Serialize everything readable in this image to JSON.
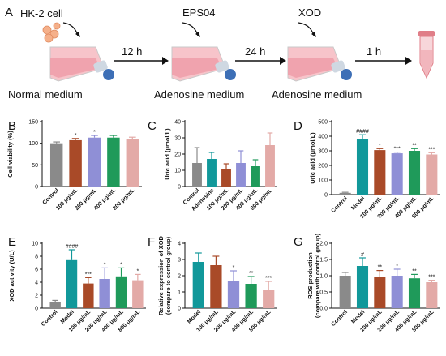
{
  "panel_a": {
    "letter": "A",
    "steps": [
      {
        "top": "HK-2 cell",
        "bottom": "Normal medium"
      },
      {
        "top": "EPS04",
        "bottom": "Adenosine medium"
      },
      {
        "top": "XOD",
        "bottom": "Adenosine medium"
      }
    ],
    "arrows": [
      "12 h",
      "24 h",
      "1 h"
    ]
  },
  "colors": {
    "grey": "#8a8a8a",
    "brown": "#a94a28",
    "lavender": "#8f8fd6",
    "green": "#1f9a5a",
    "pink": "#e3aaa7",
    "teal": "#11989a",
    "flask_pink": "#f2b6bd",
    "flask_cap": "#3d6fb6"
  },
  "chart_data": [
    {
      "panel": "B",
      "type": "bar",
      "ylabel": "Cell viability (%)",
      "yticks": [
        0,
        50,
        100,
        150
      ],
      "ylim": [
        0,
        150
      ],
      "categories": [
        "Control",
        "100 μg/mL",
        "200 μg/mL",
        "400 μg/mL",
        "800 μg/mL"
      ],
      "values": [
        100,
        107,
        113,
        113,
        110
      ],
      "errors": [
        3,
        4,
        5,
        5,
        4
      ],
      "colors": [
        "grey",
        "brown",
        "lavender",
        "green",
        "pink"
      ],
      "sig": [
        "",
        "*",
        "*",
        "",
        ""
      ]
    },
    {
      "panel": "C",
      "type": "bar",
      "ylabel": "Uric acid  (μmol/L)",
      "yticks": [
        0,
        10,
        20,
        30,
        40
      ],
      "ylim": [
        0,
        40
      ],
      "categories": [
        "Control",
        "Adenosine",
        "100 μg/mL",
        "200 μg/mL",
        "400 μg/mL",
        "800 μg/mL"
      ],
      "values": [
        14.5,
        17,
        11,
        14.5,
        12.5,
        25.5
      ],
      "errors": [
        9.5,
        4,
        3,
        7.5,
        4,
        7.5
      ],
      "colors": [
        "grey",
        "teal",
        "brown",
        "lavender",
        "green",
        "pink"
      ],
      "sig": [
        "",
        "",
        "",
        "",
        "",
        ""
      ]
    },
    {
      "panel": "D",
      "type": "bar",
      "ylabel": "Uric acid  (μmol/L)",
      "yticks": [
        0,
        100,
        200,
        300,
        400,
        500
      ],
      "ylim": [
        0,
        500
      ],
      "categories": [
        "Control",
        "Model",
        "100 μg/mL",
        "200 μg/mL",
        "400 μg/mL",
        "800 μg/mL"
      ],
      "values": [
        12,
        378,
        305,
        283,
        300,
        275
      ],
      "errors": [
        4,
        32,
        10,
        8,
        15,
        12
      ],
      "colors": [
        "grey",
        "teal",
        "brown",
        "lavender",
        "green",
        "pink"
      ],
      "sig": [
        "",
        "####",
        "*",
        "***",
        "**",
        "***"
      ]
    },
    {
      "panel": "E",
      "type": "bar",
      "ylabel": "XOD activity (U/L)",
      "yticks": [
        0,
        2,
        4,
        6,
        8,
        10
      ],
      "ylim": [
        0,
        10
      ],
      "categories": [
        "Control",
        "Model",
        "100 μg/mL",
        "200 μg/mL",
        "400 μg/mL",
        "800 μg/mL"
      ],
      "values": [
        0.9,
        7.4,
        3.8,
        4.5,
        4.9,
        4.3
      ],
      "errors": [
        0.3,
        1.6,
        0.9,
        1.7,
        1.3,
        0.9
      ],
      "colors": [
        "grey",
        "teal",
        "brown",
        "lavender",
        "green",
        "pink"
      ],
      "sig": [
        "",
        "####",
        "***",
        "*",
        "*",
        "*"
      ]
    },
    {
      "panel": "F",
      "type": "bar",
      "ylabel": "Relative expression of XOD (compare to control group)",
      "ylabel_lines": [
        "Relative expression of XOD",
        "(compare to control group)"
      ],
      "yticks": [
        0,
        1,
        2,
        3,
        4
      ],
      "ylim": [
        0,
        4
      ],
      "categories": [
        "Model",
        "100 μg/mL",
        "200 μg/mL",
        "400 μg/mL",
        "800 μg/mL"
      ],
      "values": [
        2.85,
        2.65,
        1.65,
        1.5,
        1.15
      ],
      "errors": [
        0.55,
        0.55,
        0.65,
        0.45,
        0.5
      ],
      "colors": [
        "teal",
        "brown",
        "lavender",
        "green",
        "pink"
      ],
      "sig": [
        "",
        "",
        "*",
        "**",
        "***"
      ]
    },
    {
      "panel": "G",
      "type": "bar",
      "ylabel": "ROS production (compare with control group)",
      "ylabel_lines": [
        "ROS production",
        "(compare with control group)"
      ],
      "yticks": [
        0.0,
        0.5,
        1.0,
        1.5,
        2.0
      ],
      "ylim": [
        0,
        2.0
      ],
      "ytick_format": 1,
      "categories": [
        "Control",
        "Model",
        "100 μg/mL",
        "200 μg/mL",
        "400 μg/mL",
        "800 μg/mL"
      ],
      "values": [
        1.0,
        1.3,
        0.96,
        1.0,
        0.92,
        0.8
      ],
      "errors": [
        0.1,
        0.25,
        0.2,
        0.2,
        0.12,
        0.06
      ],
      "colors": [
        "grey",
        "teal",
        "brown",
        "lavender",
        "green",
        "pink"
      ],
      "sig": [
        "",
        "#",
        "**",
        "*",
        "**",
        "***"
      ]
    }
  ]
}
